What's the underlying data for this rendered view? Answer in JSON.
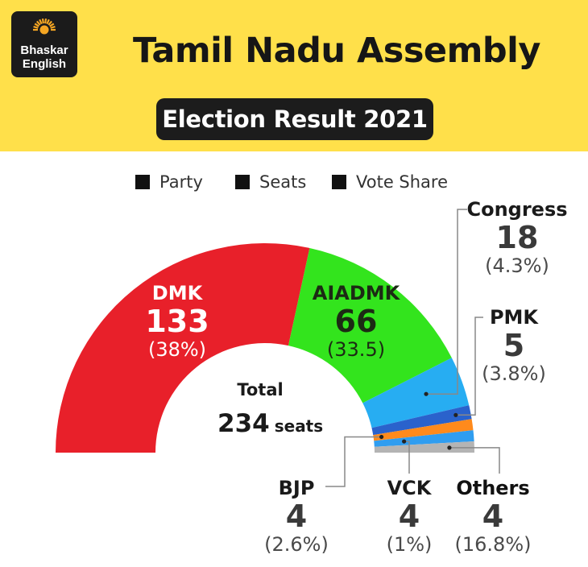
{
  "brand": {
    "logo_line1": "Bhaskar",
    "logo_line2": "English"
  },
  "title": "Tamil Nadu Assembly",
  "subtitle": "Election Result 2021",
  "legend": [
    "Party",
    "Seats",
    "Vote Share"
  ],
  "total": {
    "label": "Total",
    "value": "234",
    "unit": "seats"
  },
  "chart_data": {
    "type": "pie",
    "subtype": "semi-donut",
    "total_seats": 234,
    "legend_placement": "top",
    "slices": [
      {
        "party": "DMK",
        "seats": 133,
        "seats_label": "133",
        "vote_share": "(38%)",
        "color": "#e8202a"
      },
      {
        "party": "AIADMK",
        "seats": 66,
        "seats_label": "66",
        "vote_share": "(33.5)",
        "color": "#33e41d"
      },
      {
        "party": "Congress",
        "seats": 18,
        "seats_label": "18",
        "vote_share": "(4.3%)",
        "color": "#27adf2"
      },
      {
        "party": "PMK",
        "seats": 5,
        "seats_label": "5",
        "vote_share": "(3.8%)",
        "color": "#2a62cc"
      },
      {
        "party": "BJP",
        "seats": 4,
        "seats_label": "4",
        "vote_share": "(2.6%)",
        "color": "#ff8a1c"
      },
      {
        "party": "VCK",
        "seats": 4,
        "seats_label": "4",
        "vote_share": "(1%)",
        "color": "#2f9df0"
      },
      {
        "party": "Others",
        "seats": 4,
        "seats_label": "4",
        "vote_share": "(16.8%)",
        "color": "#b4b4b4"
      }
    ]
  }
}
